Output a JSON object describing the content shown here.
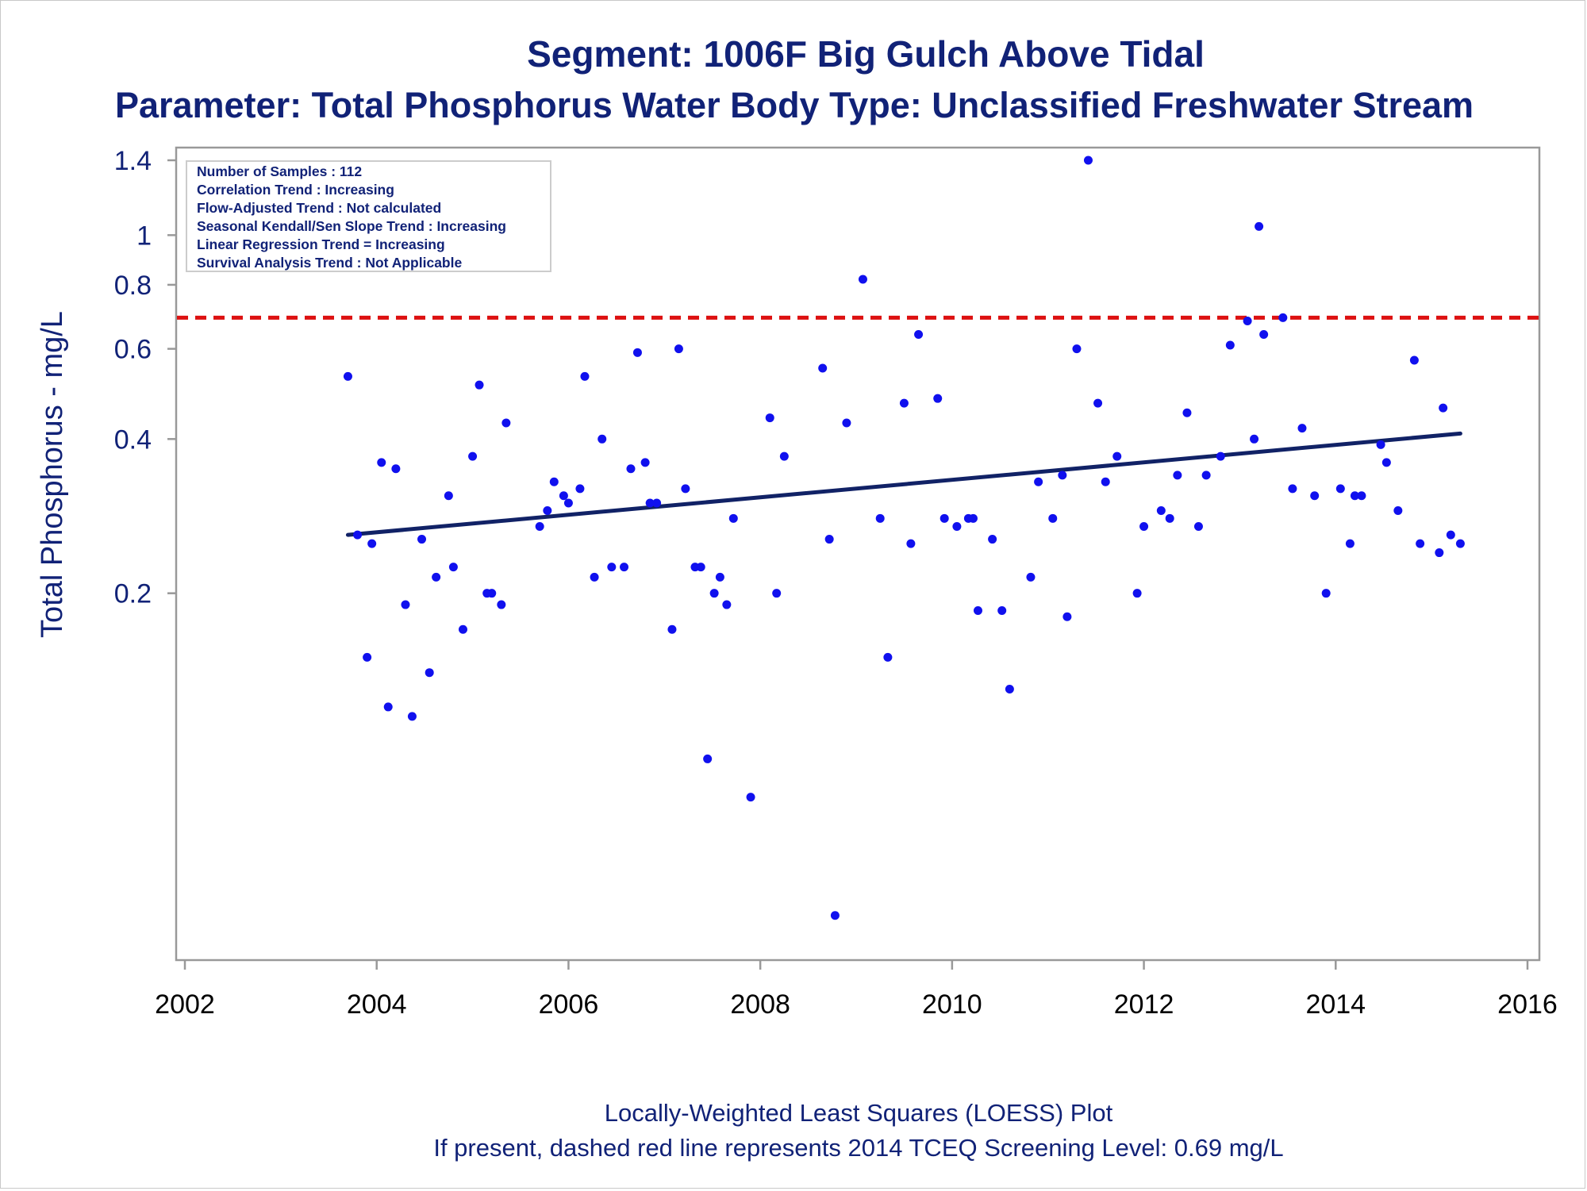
{
  "chart_data": {
    "type": "scatter",
    "title": "Segment: 1006F  Big Gulch Above Tidal",
    "subtitle": "Parameter: Total Phosphorus   Water Body Type: Unclassified Freshwater Stream",
    "ylabel": "Total Phosphorus - mg/L",
    "xlabel": "",
    "y_scale": "log",
    "ylim": [
      0.04,
      1.4
    ],
    "xlim": [
      2002,
      2016
    ],
    "x_ticks": [
      "2002",
      "2004",
      "2006",
      "2008",
      "2010",
      "2012",
      "2014",
      "2016"
    ],
    "y_ticks": [
      "0.2",
      "0.4",
      "0.6",
      "0.8",
      "1",
      "1.4"
    ],
    "grid": false,
    "stats_box": [
      "Number of Samples : 112",
      "Correlation Trend : Increasing",
      "Flow-Adjusted Trend : Not calculated",
      "Seasonal Kendall/Sen Slope Trend : Increasing",
      "Linear Regression Trend = Increasing",
      "Survival Analysis Trend : Not Applicable"
    ],
    "footnotes": [
      "Locally-Weighted Least Squares (LOESS) Plot",
      "If present, dashed red line represents 2014 TCEQ Screening Level: 0.69 mg/L"
    ],
    "screening_level": 0.69,
    "colors": {
      "points": "#1010ee",
      "trend": "#112266",
      "screening": "#dd1111",
      "text": "#112277"
    },
    "trend_line": {
      "x": [
        2003.7,
        2015.3
      ],
      "y": [
        0.26,
        0.41
      ]
    },
    "points": {
      "x": [
        2003.7,
        2003.8,
        2003.9,
        2003.95,
        2004.05,
        2004.12,
        2004.2,
        2004.3,
        2004.37,
        2004.47,
        2004.55,
        2004.62,
        2004.75,
        2004.8,
        2004.9,
        2005.0,
        2005.07,
        2005.15,
        2005.2,
        2005.3,
        2005.35,
        2005.7,
        2005.78,
        2005.85,
        2005.95,
        2006.0,
        2006.12,
        2006.17,
        2006.27,
        2006.35,
        2006.45,
        2006.58,
        2006.65,
        2006.72,
        2006.8,
        2006.85,
        2006.92,
        2007.08,
        2007.15,
        2007.22,
        2007.32,
        2007.38,
        2007.45,
        2007.52,
        2007.58,
        2007.65,
        2007.72,
        2007.9,
        2008.1,
        2008.17,
        2008.25,
        2008.65,
        2008.72,
        2008.78,
        2008.9,
        2009.07,
        2009.25,
        2009.33,
        2009.5,
        2009.57,
        2009.65,
        2009.85,
        2009.92,
        2010.05,
        2010.17,
        2010.22,
        2010.27,
        2010.42,
        2010.52,
        2010.6,
        2010.82,
        2010.9,
        2011.05,
        2011.15,
        2011.2,
        2011.3,
        2011.42,
        2011.52,
        2011.6,
        2011.72,
        2011.93,
        2012.0,
        2012.18,
        2012.27,
        2012.35,
        2012.45,
        2012.57,
        2012.65,
        2012.8,
        2012.9,
        2013.08,
        2013.15,
        2013.2,
        2013.25,
        2013.45,
        2013.55,
        2013.65,
        2013.78,
        2013.9,
        2014.05,
        2014.15,
        2014.2,
        2014.27,
        2014.47,
        2014.53,
        2014.65,
        2014.82,
        2014.88,
        2015.08,
        2015.12,
        2015.2,
        2015.3
      ],
      "y": [
        0.53,
        0.26,
        0.15,
        0.25,
        0.36,
        0.12,
        0.35,
        0.19,
        0.115,
        0.255,
        0.14,
        0.215,
        0.31,
        0.225,
        0.17,
        0.37,
        0.51,
        0.2,
        0.2,
        0.19,
        0.43,
        0.27,
        0.29,
        0.33,
        0.31,
        0.3,
        0.32,
        0.53,
        0.215,
        0.4,
        0.225,
        0.225,
        0.35,
        0.59,
        0.36,
        0.3,
        0.3,
        0.17,
        0.6,
        0.32,
        0.225,
        0.225,
        0.095,
        0.2,
        0.215,
        0.19,
        0.28,
        0.08,
        0.44,
        0.2,
        0.37,
        0.55,
        0.255,
        0.047,
        0.43,
        0.82,
        0.28,
        0.15,
        0.47,
        0.25,
        0.64,
        0.48,
        0.28,
        0.27,
        0.28,
        0.28,
        0.185,
        0.255,
        0.185,
        0.13,
        0.215,
        0.33,
        0.28,
        0.34,
        0.18,
        0.6,
        1.4,
        0.47,
        0.33,
        0.37,
        0.2,
        0.27,
        0.29,
        0.28,
        0.34,
        0.45,
        0.27,
        0.34,
        0.37,
        0.61,
        0.68,
        0.4,
        1.04,
        0.64,
        0.69,
        0.32,
        0.42,
        0.31,
        0.2,
        0.32,
        0.25,
        0.31,
        0.31,
        0.39,
        0.36,
        0.29,
        0.57,
        0.25,
        0.24,
        0.46,
        0.26,
        0.25
      ]
    }
  }
}
